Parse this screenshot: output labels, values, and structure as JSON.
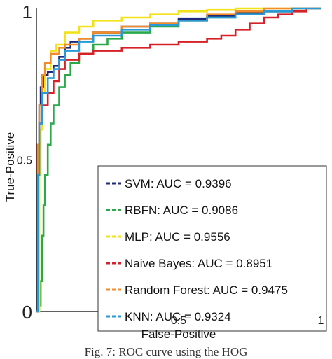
{
  "chart_data": {
    "type": "line",
    "title": "",
    "xlabel": "False-Positive",
    "ylabel": "True-Positive",
    "xlim": [
      0,
      1
    ],
    "ylim": [
      0,
      1
    ],
    "x_ticks": [
      {
        "value": 0.5,
        "label": "0.5"
      },
      {
        "value": 1,
        "label": "1"
      }
    ],
    "y_ticks": [
      {
        "value": 0,
        "label": "0"
      },
      {
        "value": 0.5,
        "label": "0.5"
      },
      {
        "value": 1,
        "label": "1"
      }
    ],
    "grid": false,
    "legend_position": "bottom-right",
    "series": [
      {
        "name": "SVM",
        "legend_label": "SVM: AUC = 0.9396",
        "color": "#1f2a7a",
        "x": [
          0,
          0.005,
          0.01,
          0.015,
          0.025,
          0.04,
          0.06,
          0.08,
          0.1,
          0.12,
          0.15,
          0.2,
          0.3,
          0.4,
          0.5,
          0.6,
          0.7,
          0.8,
          0.9,
          1.0
        ],
        "y": [
          0,
          0.55,
          0.68,
          0.74,
          0.78,
          0.79,
          0.81,
          0.84,
          0.87,
          0.89,
          0.9,
          0.92,
          0.94,
          0.95,
          0.965,
          0.975,
          0.985,
          0.99,
          1.0,
          1.0
        ]
      },
      {
        "name": "RBFN",
        "legend_label": "RBFN: AUC = 0.9086",
        "color": "#2aa84a",
        "x": [
          0,
          0.01,
          0.015,
          0.02,
          0.025,
          0.03,
          0.04,
          0.05,
          0.06,
          0.08,
          0.1,
          0.12,
          0.15,
          0.2,
          0.25,
          0.3,
          0.4,
          0.5,
          0.6,
          0.7,
          0.8,
          0.9,
          1.0
        ],
        "y": [
          0,
          0.02,
          0.1,
          0.25,
          0.35,
          0.45,
          0.55,
          0.62,
          0.68,
          0.74,
          0.78,
          0.82,
          0.85,
          0.88,
          0.9,
          0.92,
          0.94,
          0.96,
          0.97,
          0.98,
          0.99,
          1.0,
          1.0
        ]
      },
      {
        "name": "MLP",
        "legend_label": "MLP: AUC = 0.9556",
        "color": "#f2e21a",
        "x": [
          0,
          0.01,
          0.015,
          0.02,
          0.03,
          0.05,
          0.07,
          0.1,
          0.15,
          0.2,
          0.3,
          0.4,
          0.5,
          0.6,
          0.7,
          0.8,
          0.9,
          1.0
        ],
        "y": [
          0,
          0.45,
          0.6,
          0.72,
          0.8,
          0.86,
          0.88,
          0.92,
          0.94,
          0.96,
          0.97,
          0.98,
          0.99,
          0.995,
          1.0,
          1.0,
          1.0,
          1.0
        ]
      },
      {
        "name": "Naive Bayes",
        "legend_label": "Naive Bayes: AUC = 0.8951",
        "color": "#d62128",
        "x": [
          0,
          0.005,
          0.01,
          0.02,
          0.04,
          0.06,
          0.08,
          0.1,
          0.15,
          0.2,
          0.3,
          0.4,
          0.5,
          0.6,
          0.65,
          0.7,
          0.75,
          0.8,
          0.85,
          0.9,
          0.95,
          1.0
        ],
        "y": [
          0,
          0.55,
          0.62,
          0.68,
          0.72,
          0.76,
          0.8,
          0.83,
          0.85,
          0.86,
          0.87,
          0.88,
          0.89,
          0.9,
          0.91,
          0.93,
          0.95,
          0.97,
          0.98,
          0.99,
          1.0,
          1.0
        ]
      },
      {
        "name": "Random Forest",
        "legend_label": "Random Forest: AUC = 0.9475",
        "color": "#f28c28",
        "x": [
          0,
          0.005,
          0.01,
          0.02,
          0.03,
          0.05,
          0.08,
          0.1,
          0.15,
          0.2,
          0.3,
          0.4,
          0.5,
          0.6,
          0.7,
          0.8,
          0.9,
          1.0
        ],
        "y": [
          0,
          0.55,
          0.68,
          0.78,
          0.82,
          0.85,
          0.87,
          0.88,
          0.9,
          0.92,
          0.94,
          0.95,
          0.96,
          0.98,
          0.99,
          1.0,
          1.0,
          1.0
        ]
      },
      {
        "name": "KNN",
        "legend_label": "KNN: AUC = 0.9324",
        "color": "#2a9ad6",
        "x": [
          0,
          0.005,
          0.01,
          0.02,
          0.04,
          0.06,
          0.08,
          0.1,
          0.15,
          0.2,
          0.3,
          0.4,
          0.5,
          0.6,
          0.7,
          0.8,
          0.9,
          1.0
        ],
        "y": [
          0,
          0.45,
          0.62,
          0.72,
          0.77,
          0.8,
          0.83,
          0.86,
          0.89,
          0.91,
          0.93,
          0.945,
          0.96,
          0.97,
          0.98,
          0.99,
          1.0,
          1.0
        ]
      }
    ]
  },
  "caption": "Fig. 7: ROC curve using the HOG"
}
